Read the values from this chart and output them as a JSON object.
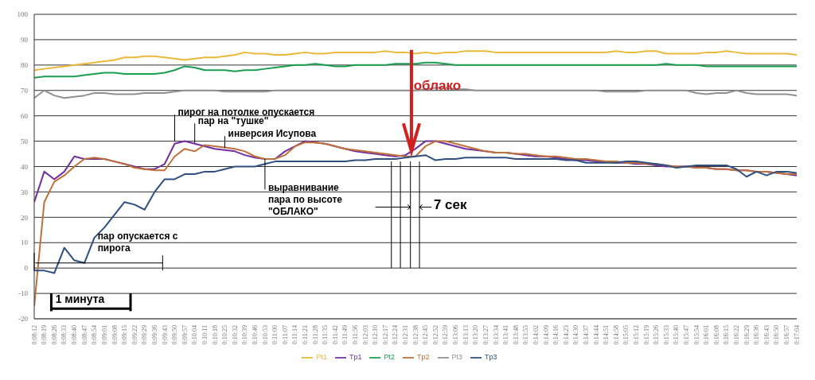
{
  "chart_data": {
    "type": "line",
    "categories": [
      "0:08:12",
      "0:08:19",
      "0:08:26",
      "0:08:33",
      "0:08:40",
      "0:08:47",
      "0:08:54",
      "0:09:01",
      "0:09:08",
      "0:09:15",
      "0:09:22",
      "0:09:29",
      "0:09:36",
      "0:09:43",
      "0:09:50",
      "0:09:57",
      "0:10:04",
      "0:10:11",
      "0:10:18",
      "0:10:25",
      "0:10:32",
      "0:10:39",
      "0:10:46",
      "0:10:53",
      "0:11:00",
      "0:11:07",
      "0:11:14",
      "0:11:21",
      "0:11:28",
      "0:11:35",
      "0:11:42",
      "0:11:49",
      "0:11:56",
      "0:12:03",
      "0:12:10",
      "0:12:17",
      "0:12:24",
      "0:12:31",
      "0:12:38",
      "0:12:45",
      "0:12:52",
      "0:12:59",
      "0:13:06",
      "0:13:13",
      "0:13:20",
      "0:13:27",
      "0:13:34",
      "0:13:41",
      "0:13:48",
      "0:13:55",
      "0:14:02",
      "0:14:09",
      "0:14:16",
      "0:14:23",
      "0:14:30",
      "0:14:37",
      "0:14:44",
      "0:14:51",
      "0:14:58",
      "0:15:05",
      "0:15:12",
      "0:15:19",
      "0:15:26",
      "0:15:33",
      "0:15:40",
      "0:15:47",
      "0:15:54",
      "0:16:01",
      "0:16:08",
      "0:16:15",
      "0:16:22",
      "0:16:29",
      "0:16:36",
      "0:16:43",
      "0:16:50",
      "0:16:57",
      "0:17:04"
    ],
    "series": [
      {
        "name": "Pt1",
        "color": "#e8b93a",
        "values": [
          78,
          78.5,
          79,
          79.5,
          80,
          80.5,
          81,
          81.5,
          82,
          83,
          83,
          83.5,
          83.5,
          83,
          82.5,
          82,
          82.5,
          83,
          83,
          83.5,
          84,
          85,
          84.5,
          84.5,
          84,
          84,
          84.5,
          85,
          84.5,
          84.5,
          85,
          85,
          85,
          85,
          85,
          85.5,
          85,
          85,
          84.5,
          85,
          84.5,
          85,
          85,
          85.5,
          85.5,
          85.5,
          85,
          85,
          85,
          85,
          85,
          85,
          85,
          85,
          85,
          85,
          85,
          85,
          85.5,
          85,
          85,
          85.5,
          85.5,
          84.5,
          84.5,
          84.5,
          84.5,
          85,
          85,
          85.5,
          85,
          84.5,
          84.5,
          84.5,
          84.5,
          84.5,
          84
        ]
      },
      {
        "name": "Tp1",
        "color": "#7030a0",
        "values": [
          26,
          38,
          35,
          38,
          44,
          43,
          43,
          43,
          42,
          41,
          40,
          39,
          39,
          41,
          49,
          50,
          49,
          48,
          47,
          46.5,
          46,
          44.5,
          43.5,
          43,
          43,
          46,
          48,
          50,
          49.5,
          49,
          48,
          47,
          46,
          45.5,
          45,
          44.5,
          44,
          44.5,
          47,
          50,
          50,
          49,
          48,
          47,
          46.5,
          46,
          45.5,
          45.5,
          45,
          44.5,
          44,
          44,
          43.5,
          43,
          42.5,
          42.5,
          42,
          42,
          41.5,
          41.5,
          41,
          41,
          40.5,
          40,
          40,
          40,
          39.5,
          39.5,
          39,
          39,
          38.5,
          38.5,
          38,
          38,
          37.5,
          37,
          36.5
        ]
      },
      {
        "name": "Pt2",
        "color": "#1a9e50",
        "values": [
          75,
          75.5,
          75.5,
          75.5,
          75.5,
          76,
          76.5,
          77,
          77,
          76.5,
          76.5,
          76.5,
          76.5,
          77,
          78,
          79.5,
          79,
          78,
          78,
          78,
          77.5,
          78,
          78,
          78.5,
          79,
          79.5,
          80,
          80,
          80.5,
          80,
          79.5,
          79.5,
          80,
          80,
          80,
          80,
          80.5,
          80.5,
          80.5,
          81,
          81,
          80.5,
          80,
          80,
          80,
          80,
          80,
          80,
          80,
          80,
          80,
          80,
          80,
          80,
          80,
          80,
          80,
          80,
          80,
          80,
          80,
          80,
          80,
          80.5,
          80,
          80,
          80,
          79.5,
          79.5,
          79.5,
          79.5,
          79.5,
          79.5,
          79.5,
          79.5,
          79.5,
          79.5
        ]
      },
      {
        "name": "Tp2",
        "color": "#c0703a",
        "values": [
          -15,
          26,
          34,
          36.5,
          40,
          43,
          43.5,
          43,
          42,
          41,
          39.5,
          39,
          38.5,
          38.5,
          44,
          47,
          46,
          48.5,
          48,
          47.5,
          47,
          46,
          44,
          43,
          43,
          44.5,
          48,
          49.5,
          49.5,
          49,
          48,
          47,
          46.5,
          46,
          45.5,
          45,
          44.5,
          44,
          44,
          48,
          50,
          50,
          49,
          48,
          47,
          46,
          45.5,
          45.5,
          45,
          45,
          44.5,
          44,
          44,
          43.5,
          43,
          43,
          42.5,
          42,
          42,
          41.5,
          41.5,
          41,
          41,
          40.5,
          40,
          40,
          39.5,
          39.5,
          39,
          39,
          38.5,
          38.5,
          38,
          38,
          37.5,
          37,
          37
        ]
      },
      {
        "name": "Pt3",
        "color": "#909090",
        "values": [
          67,
          70,
          68,
          67,
          67.5,
          68,
          69,
          69,
          68.5,
          68.5,
          68.5,
          69,
          69,
          69,
          69.5,
          70,
          70,
          70,
          70,
          69.5,
          69.5,
          69.5,
          69.5,
          69.5,
          70,
          70,
          70,
          70,
          70,
          70,
          70,
          70,
          70,
          70,
          70,
          70,
          70,
          70,
          70,
          70.5,
          71,
          71,
          70.5,
          70.5,
          70,
          70,
          70,
          70,
          70,
          70,
          70,
          70,
          70,
          70,
          70,
          70,
          70,
          69.5,
          69.5,
          69.5,
          69.5,
          70,
          70,
          70,
          70,
          70,
          69,
          68.5,
          69,
          69,
          70,
          69,
          68.5,
          68.5,
          68.5,
          68.5,
          68
        ]
      },
      {
        "name": "Tp3",
        "color": "#2f4f7f",
        "values": [
          -1,
          -1,
          -2,
          8,
          3,
          2,
          12,
          16,
          21,
          26,
          25,
          23,
          30,
          35,
          35,
          37,
          37,
          38,
          38,
          39,
          40,
          40,
          40,
          41,
          42,
          42,
          42,
          42,
          42,
          42,
          42,
          42,
          42.5,
          42.5,
          43,
          43,
          43,
          43.5,
          44,
          44.5,
          42.5,
          43,
          43,
          43.5,
          43.5,
          43.5,
          43.5,
          43.5,
          43,
          43,
          43,
          43,
          43,
          42.5,
          42.5,
          41.5,
          41.5,
          41.5,
          41.5,
          42,
          42,
          41.5,
          41,
          40.5,
          39.5,
          40,
          40.5,
          40.5,
          40.5,
          40.5,
          39,
          36,
          38,
          36.5,
          38,
          38,
          37.5
        ]
      }
    ],
    "ylim": [
      -20,
      100
    ],
    "yticks": [
      -20,
      -10,
      0,
      10,
      20,
      30,
      40,
      50,
      60,
      70,
      80,
      90,
      100
    ],
    "grid": "y",
    "legend": "bottom",
    "marker": "none",
    "line_style": "solid",
    "annotations": [
      "облако",
      {
        "text": "пирог на потолке опускается",
        "x": "0:09:50",
        "y": 49
      },
      {
        "text": "пар на \"тушке\"",
        "x": "0:10:04",
        "y": 48.5
      },
      {
        "text": "инверсия Исупова",
        "x": "0:10:25",
        "y": 46.5
      },
      {
        "text": "выравнивание пара по высоте \"ОБЛАКО\"",
        "x": "0:10:53",
        "y": 43
      },
      "пар опускается с пирога",
      "7 сек",
      "1 минута"
    ]
  }
}
